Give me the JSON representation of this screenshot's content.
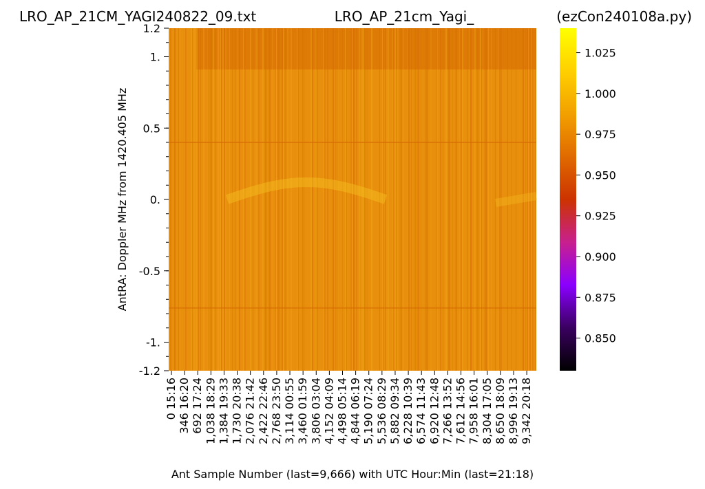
{
  "chart_data": {
    "type": "heatmap",
    "title_left": "LRO_AP_21CM_YAGI240822_09.txt",
    "title_center": "LRO_AP_21cm_Yagi_",
    "title_right": "(ezCon240108a.py)",
    "xlabel": "Ant Sample Number (last=9,666) with UTC Hour:Min (last=21:18)",
    "ylabel": "AntRA:  Doppler MHz from 1420.405 MHz",
    "x_range": [
      0,
      9666
    ],
    "y_range": [
      -1.2,
      1.2
    ],
    "x_ticks": [
      {
        "sample": 0,
        "label": "0   15:16"
      },
      {
        "sample": 346,
        "label": "346   16:20"
      },
      {
        "sample": 692,
        "label": "692   17:24"
      },
      {
        "sample": 1038,
        "label": "1,038   18:29"
      },
      {
        "sample": 1384,
        "label": "1,384   19:33"
      },
      {
        "sample": 1730,
        "label": "1,730   20:38"
      },
      {
        "sample": 2076,
        "label": "2,076   21:42"
      },
      {
        "sample": 2422,
        "label": "2,422   22:46"
      },
      {
        "sample": 2768,
        "label": "2,768   23:50"
      },
      {
        "sample": 3114,
        "label": "3,114   00:55"
      },
      {
        "sample": 3460,
        "label": "3,460   01:59"
      },
      {
        "sample": 3806,
        "label": "3,806   03:04"
      },
      {
        "sample": 4152,
        "label": "4,152   04:09"
      },
      {
        "sample": 4498,
        "label": "4,498   05:14"
      },
      {
        "sample": 4844,
        "label": "4,844   06:19"
      },
      {
        "sample": 5190,
        "label": "5,190   07:24"
      },
      {
        "sample": 5536,
        "label": "5,536   08:29"
      },
      {
        "sample": 5882,
        "label": "5,882   09:34"
      },
      {
        "sample": 6228,
        "label": "6,228   10:39"
      },
      {
        "sample": 6574,
        "label": "6,574   11:43"
      },
      {
        "sample": 6920,
        "label": "6,920   12:48"
      },
      {
        "sample": 7266,
        "label": "7,266   13:52"
      },
      {
        "sample": 7612,
        "label": "7,612   14:56"
      },
      {
        "sample": 7958,
        "label": "7,958   16:01"
      },
      {
        "sample": 8304,
        "label": "8,304   17:05"
      },
      {
        "sample": 8650,
        "label": "8,650   18:09"
      },
      {
        "sample": 8996,
        "label": "8,996   19:13"
      },
      {
        "sample": 9342,
        "label": "9,342   20:18"
      }
    ],
    "y_ticks": [
      {
        "value": 1.2,
        "label": "1.2"
      },
      {
        "value": 1.0,
        "label": "1."
      },
      {
        "value": 0.5,
        "label": "0.5"
      },
      {
        "value": 0.0,
        "label": "0."
      },
      {
        "value": -0.5,
        "label": "-0.5"
      },
      {
        "value": -1.0,
        "label": "-1."
      },
      {
        "value": -1.2,
        "label": "-1.2"
      }
    ],
    "colorbar": {
      "colormap": "gnuplot",
      "range": [
        0.83,
        1.04
      ],
      "ticks": [
        {
          "value": 0.85,
          "label": "0.850"
        },
        {
          "value": 0.875,
          "label": "0.875"
        },
        {
          "value": 0.9,
          "label": "0.900"
        },
        {
          "value": 0.925,
          "label": "0.925"
        },
        {
          "value": 0.95,
          "label": "0.950"
        },
        {
          "value": 0.975,
          "label": "0.975"
        },
        {
          "value": 1.0,
          "label": "1.000"
        },
        {
          "value": 1.025,
          "label": "1.025"
        }
      ],
      "stops": [
        "#000000",
        "#3a0060",
        "#8a00ff",
        "#c8208e",
        "#cc3300",
        "#e06a00",
        "#f2a000",
        "#ffd000",
        "#ffff00"
      ]
    },
    "heatmap_colors": {
      "base": "#e8900d",
      "dark": "#d66a04",
      "light": "#f3ad18",
      "arc": "#f6c021"
    }
  }
}
